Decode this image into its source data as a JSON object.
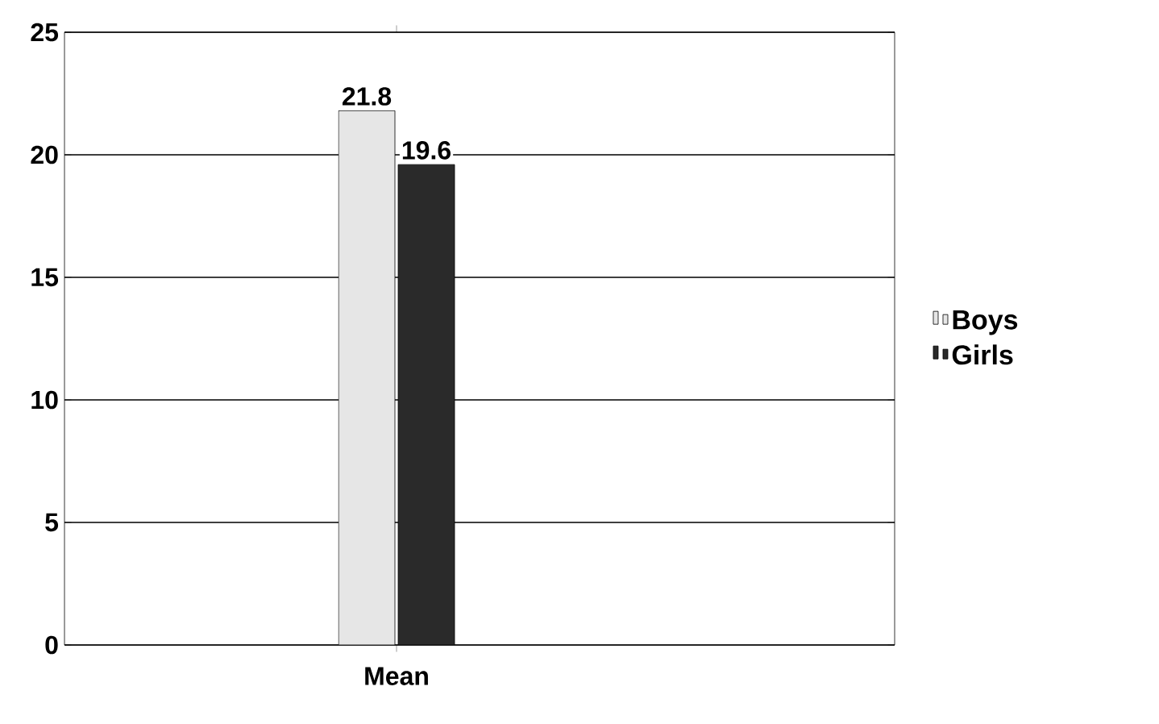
{
  "chart_data": {
    "type": "bar",
    "categories": [
      "Mean"
    ],
    "series": [
      {
        "name": "Boys",
        "color": "#e6e6e6",
        "values": [
          21.8
        ]
      },
      {
        "name": "Girls",
        "color": "#2a2a2a",
        "values": [
          19.6
        ]
      }
    ],
    "ylim": [
      0,
      25
    ],
    "yticks": [
      0,
      5,
      10,
      15,
      20,
      25
    ],
    "grid": "y",
    "legend": "right",
    "data_labels": true
  }
}
